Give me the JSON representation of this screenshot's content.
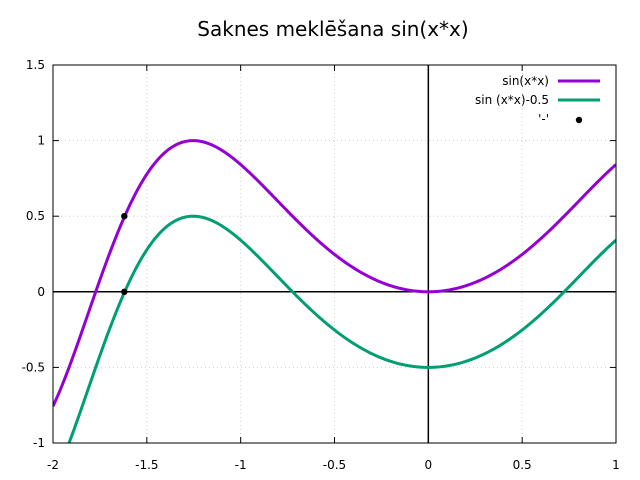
{
  "chart_data": {
    "type": "line",
    "title": "Saknes meklēšana sin(x*x)",
    "xlabel": "",
    "ylabel": "",
    "xlim": [
      -2,
      1
    ],
    "ylim": [
      -1,
      1.5
    ],
    "xticks": [
      -2,
      -1.5,
      -1,
      -0.5,
      0,
      0.5,
      1
    ],
    "yticks": [
      -1,
      -0.5,
      0,
      0.5,
      1,
      1.5
    ],
    "xtick_labels": [
      "-2",
      "-1.5",
      "-1",
      "-0.5",
      "0",
      "0.5",
      "1"
    ],
    "ytick_labels": [
      "-1",
      "-0.5",
      "0",
      "0.5",
      "1",
      "1.5"
    ],
    "grid": true,
    "legend_position": "top-right",
    "series": [
      {
        "name": "sin(x*x)",
        "expression": "sin(x*x)",
        "style": "line",
        "color": "#9400d3"
      },
      {
        "name": "sin (x*x)-0.5",
        "expression": "sin(x*x)-0.5",
        "style": "line",
        "color": "#009e73"
      },
      {
        "name": "'-'",
        "style": "points",
        "color": "#000000",
        "points": [
          {
            "x": -1.62,
            "y": 0.5
          },
          {
            "x": -1.62,
            "y": 0.0
          }
        ]
      }
    ]
  }
}
